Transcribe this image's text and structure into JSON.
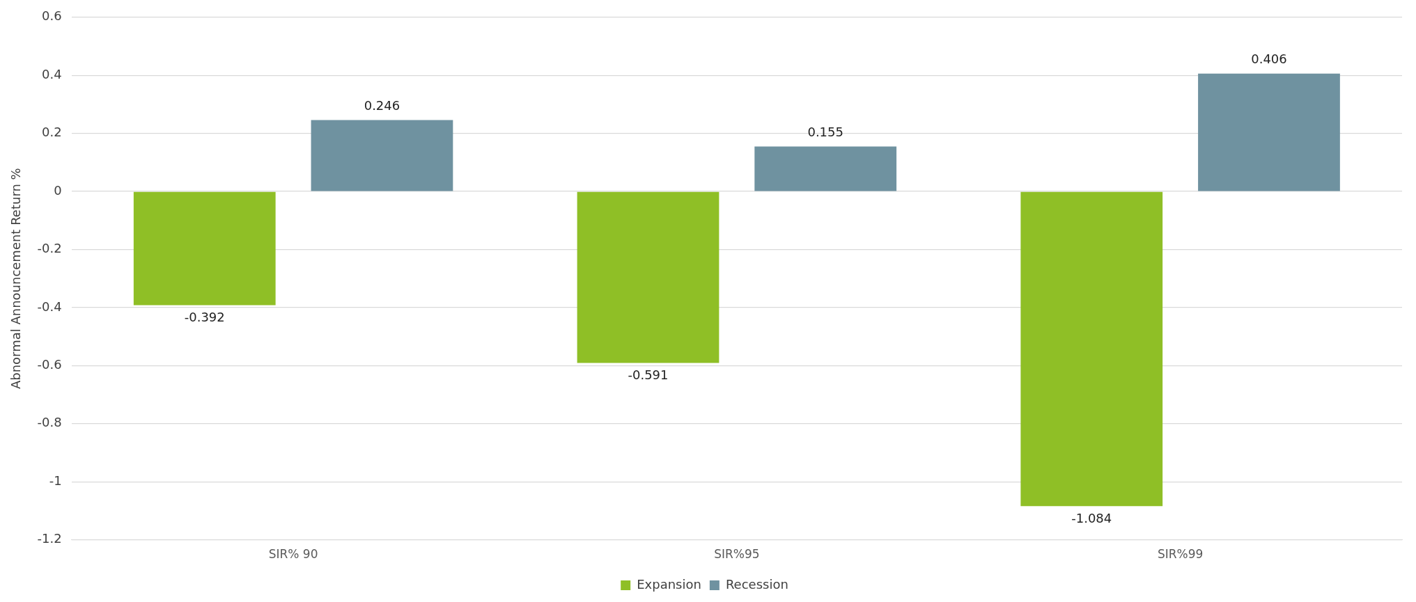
{
  "chart_data": {
    "type": "bar",
    "ylabel": "Abnormal Announcement Return %",
    "categories": [
      "SIR% 90",
      "SIR%95",
      "SIR%99"
    ],
    "series": [
      {
        "name": "Expansion",
        "color": "#8fbf26",
        "values": [
          -0.392,
          -0.591,
          -1.084
        ]
      },
      {
        "name": "Recession",
        "color": "#6f92a0",
        "values": [
          0.246,
          0.155,
          0.406
        ]
      }
    ],
    "ylim": [
      -1.2,
      0.6
    ],
    "yticks": [
      -1.2,
      -1,
      -0.8,
      -0.6,
      -0.4,
      -0.2,
      0,
      0.2,
      0.4,
      0.6
    ],
    "grid": "y",
    "legend": "bottom",
    "data_labels": true
  }
}
